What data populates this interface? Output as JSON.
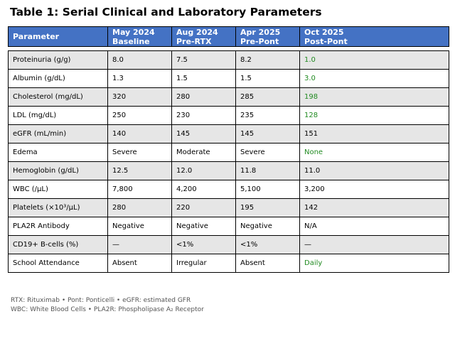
{
  "title": "Table 1: Serial Clinical and Laboratory Parameters",
  "table": {
    "header": [
      [
        "Parameter"
      ],
      [
        "May 2024",
        "Baseline"
      ],
      [
        "Aug 2024",
        "Pre-RTX"
      ],
      [
        "Apr 2025",
        "Pre-Pont"
      ],
      [
        "Oct 2025",
        "Post-Pont"
      ]
    ],
    "rows": [
      [
        "Proteinuria (g/g)",
        "8.0",
        "7.5",
        "8.2",
        "1.0"
      ],
      [
        "Albumin (g/dL)",
        "1.3",
        "1.5",
        "1.5",
        "3.0"
      ],
      [
        "Cholesterol (mg/dL)",
        "320",
        "280",
        "285",
        "198"
      ],
      [
        "LDL (mg/dL)",
        "250",
        "230",
        "235",
        "128"
      ],
      [
        "eGFR (mL/min)",
        "140",
        "145",
        "145",
        "151"
      ],
      [
        "Edema",
        "Severe",
        "Moderate",
        "Severe",
        "None"
      ],
      [
        "Hemoglobin (g/dL)",
        "12.5",
        "12.0",
        "11.8",
        "11.0"
      ],
      [
        "WBC (/µL)",
        "7,800",
        "4,200",
        "5,100",
        "3,200"
      ],
      [
        "Platelets (×10³/µL)",
        "280",
        "220",
        "195",
        "142"
      ],
      [
        "PLA2R Antibody",
        "Negative",
        "Negative",
        "Negative",
        "N/A"
      ],
      [
        "CD19+ B-cells (%)",
        "—",
        "<1%",
        "<1%",
        "—"
      ],
      [
        "School Attendance",
        "Absent",
        "Irregular",
        "Absent",
        "Daily"
      ]
    ]
  },
  "footnotes": [
    "RTX: Rituximab • Pont: Ponticelli • eGFR: estimated GFR",
    "WBC: White Blood Cells • PLA2R: Phospholipase A₂ Receptor"
  ]
}
